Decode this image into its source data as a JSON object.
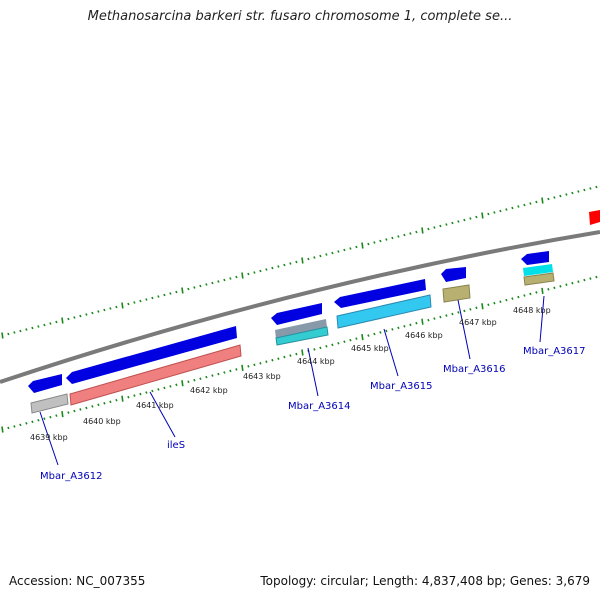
{
  "title": "Methanosarcina barkeri str. fusaro chromosome 1, complete se...",
  "footer": {
    "accession": "Accession: NC_007355",
    "summary": "Topology: circular; Length: 4,837,408 bp; Genes: 3,679"
  },
  "ticks": [
    "4639 kbp",
    "4640 kbp",
    "4641 kbp",
    "4642 kbp",
    "4643 kbp",
    "4644 kbp",
    "4645 kbp",
    "4646 kbp",
    "4647 kbp",
    "4648 kbp"
  ],
  "genes": [
    "Mbar_A3612",
    "ileS",
    "Mbar_A3614",
    "Mbar_A3615",
    "Mbar_A3616",
    "Mbar_A3617"
  ],
  "colors": {
    "cds_arrow": "#0000e0",
    "backbone": "#808080",
    "tick_green": "#1a8a1a",
    "label_blue": "#0000b8",
    "gene_gray": "#c0c0c0",
    "gene_pink": "#f08080",
    "gene_lightblue": "#33ccf0",
    "gene_olive": "#b8b070",
    "gene_red": "#ff0000"
  }
}
